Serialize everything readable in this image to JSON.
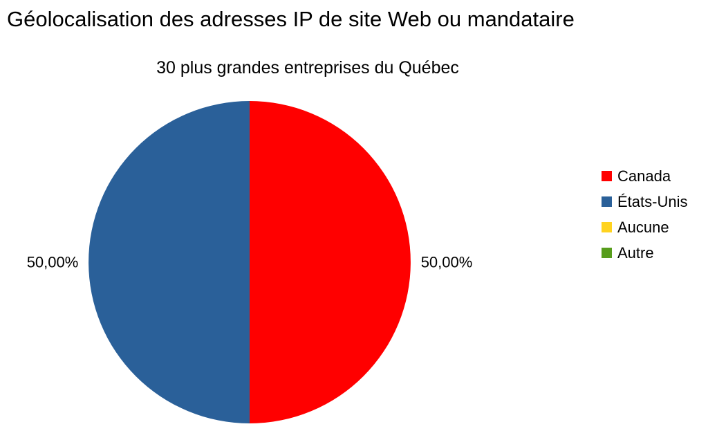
{
  "chart_data": {
    "type": "pie",
    "title": "Géolocalisation des adresses IP de site Web ou mandataire",
    "subtitle": "30 plus grandes entreprises du Québec",
    "legend_position": "right",
    "slices": [
      {
        "label": "Canada",
        "value": 50,
        "display": "50,00%",
        "color": "#ff0000"
      },
      {
        "label": "États-Unis",
        "value": 50,
        "display": "50,00%",
        "color": "#2a6099"
      },
      {
        "label": "Aucune",
        "value": 0,
        "display": "",
        "color": "#ffd320"
      },
      {
        "label": "Autre",
        "value": 0,
        "display": "",
        "color": "#579d1c"
      }
    ]
  }
}
